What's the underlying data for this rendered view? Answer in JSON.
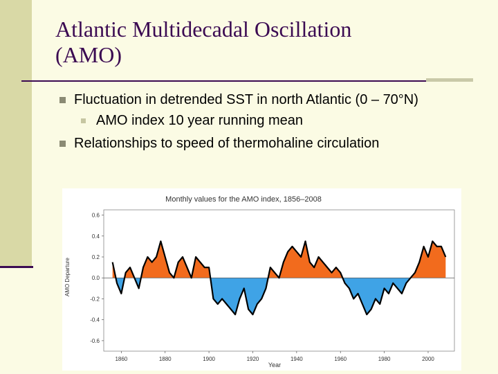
{
  "slide": {
    "title_line1": "Atlantic Multidecadal Oscillation",
    "title_line2": "(AMO)",
    "bullets": [
      "Fluctuation in detrended SST in north Atlantic (0 – 70°N)",
      "AMO index 10 year running mean",
      "Relationships to speed of thermohaline circulation"
    ]
  },
  "chart_data": {
    "type": "area",
    "title": "Monthly values for the AMO index, 1856–2008",
    "xlabel": "Year",
    "ylabel": "AMO Departure",
    "xlim": [
      1852,
      2012
    ],
    "ylim": [
      -0.7,
      0.65
    ],
    "x_ticks": [
      "1860",
      "1880",
      "1900",
      "1920",
      "1940",
      "1960",
      "1980",
      "2000"
    ],
    "y_ticks": [
      "0.6",
      "0.4",
      "0.2",
      "0.0",
      "-0.2",
      "-0.4",
      "-0.6"
    ],
    "grid": false,
    "colors": {
      "positive": "#f26b1d",
      "negative": "#3fa3e6",
      "mean_line": "#000000",
      "frame": "#888888"
    },
    "series": [
      {
        "x": [
          1856,
          1858,
          1860,
          1862,
          1864,
          1866,
          1868,
          1870,
          1872,
          1874,
          1876,
          1878,
          1880,
          1882,
          1884,
          1886,
          1888,
          1890,
          1892,
          1894,
          1896,
          1898,
          1900,
          1902,
          1904,
          1906,
          1908,
          1910,
          1912,
          1914,
          1916,
          1918,
          1920,
          1922,
          1924,
          1926,
          1928,
          1930,
          1932,
          1934,
          1936,
          1938,
          1940,
          1942,
          1944,
          1946,
          1948,
          1950,
          1952,
          1954,
          1956,
          1958,
          1960,
          1962,
          1964,
          1966,
          1968,
          1970,
          1972,
          1974,
          1976,
          1978,
          1980,
          1982,
          1984,
          1986,
          1988,
          1990,
          1992,
          1994,
          1996,
          1998,
          2000,
          2002,
          2004,
          2006,
          2008
        ],
        "values": [
          0.15,
          -0.05,
          -0.15,
          0.05,
          0.1,
          0.0,
          -0.1,
          0.1,
          0.2,
          0.15,
          0.2,
          0.35,
          0.2,
          0.05,
          0.0,
          0.15,
          0.2,
          0.1,
          0.0,
          0.2,
          0.15,
          0.1,
          0.1,
          -0.2,
          -0.25,
          -0.2,
          -0.25,
          -0.3,
          -0.35,
          -0.2,
          -0.1,
          -0.3,
          -0.35,
          -0.25,
          -0.2,
          -0.1,
          0.1,
          0.05,
          0.0,
          0.15,
          0.25,
          0.3,
          0.25,
          0.2,
          0.35,
          0.15,
          0.1,
          0.2,
          0.15,
          0.1,
          0.05,
          0.1,
          0.05,
          -0.05,
          -0.1,
          -0.2,
          -0.15,
          -0.25,
          -0.35,
          -0.3,
          -0.2,
          -0.25,
          -0.1,
          -0.15,
          -0.05,
          -0.1,
          -0.15,
          -0.05,
          0.0,
          0.05,
          0.15,
          0.3,
          0.2,
          0.35,
          0.3,
          0.3,
          0.2
        ]
      }
    ]
  }
}
